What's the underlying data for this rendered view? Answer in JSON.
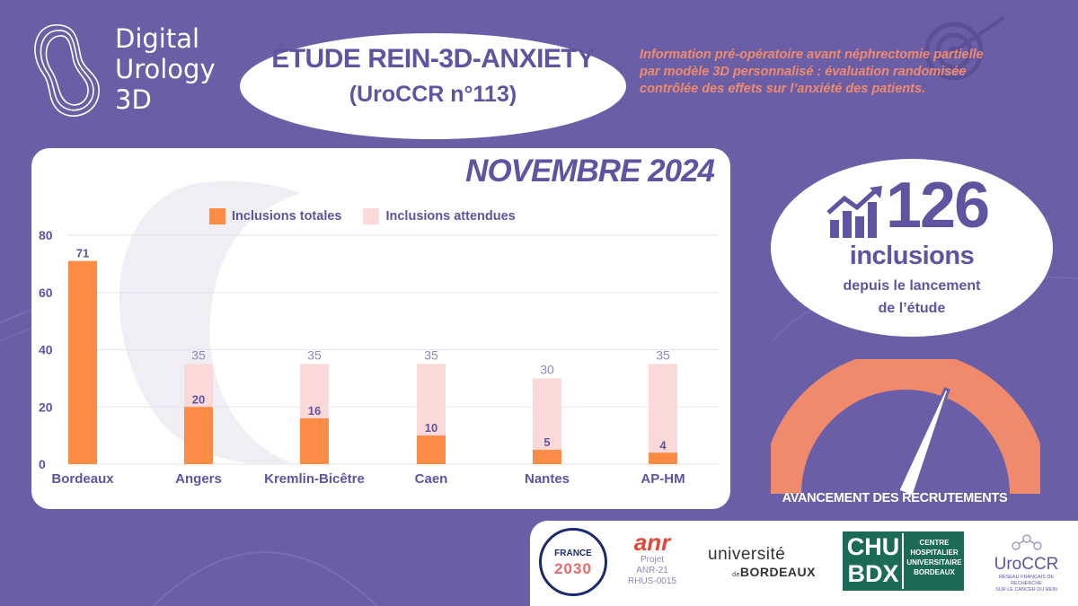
{
  "logo": {
    "line1": "Digital",
    "line2": "Urology",
    "line3": "3D"
  },
  "study": {
    "title": "ÉTUDE REIN-3D-ANXIETY",
    "subtitle": "(UroCCR n°113)"
  },
  "description": [
    " Information pré-opératoire avant néphrectomie partielle",
    "par modèle 3D personnalisé : évaluation randomisée",
    "contrôlée des effets sur l’anxiété des patients."
  ],
  "inclusions": {
    "count": "126",
    "label": "inclusions",
    "sub1": "depuis le lancement",
    "sub2": "de l’étude"
  },
  "gauge": {
    "label": "AVANCEMENT DES RECRUTEMENTS",
    "needle_fraction": 0.62
  },
  "colors": {
    "background": "#6a5fa7",
    "accent": "#5d55a0",
    "total": "#fa8c46",
    "expected": "#fcd9d9",
    "gauge": "#f08a6c"
  },
  "icons": [
    "growth-chart-icon",
    "target-icon",
    "speedometer-needle-icon"
  ],
  "chart_data": {
    "type": "bar",
    "title": "NOVEMBRE 2024",
    "categories": [
      "Bordeaux",
      "Angers",
      "Kremlin-Bicêtre",
      "Caen",
      "Nantes",
      "AP-HM"
    ],
    "series": [
      {
        "name": "Inclusions totales",
        "values": [
          71,
          20,
          16,
          10,
          5,
          4
        ]
      },
      {
        "name": "Inclusions attendues",
        "values": [
          null,
          35,
          35,
          35,
          30,
          35
        ]
      }
    ],
    "y_ticks": [
      "0",
      "20",
      "40",
      "60",
      "80"
    ],
    "ylim": [
      0,
      80
    ],
    "grid": true,
    "legend_position": "top"
  },
  "partners": {
    "france2030_line1": "FRANCE",
    "france2030_line2": "2030",
    "anr_name": "anr",
    "anr_line1": "Projet",
    "anr_line2": "ANR-21",
    "anr_line3": "RHUS-0015",
    "ubx_line1": "université",
    "ubx_de": "de",
    "ubx_line2": "BORDEAUX",
    "chu_line1": "CHU",
    "chu_line2": "BDX",
    "chu_r1": "CENTRE",
    "chu_r2": "HOSPITALIER",
    "chu_r3": "UNIVERSITAIRE",
    "chu_r4": "BORDEAUX",
    "uroccr_name": "UroCCR",
    "uroccr_tag1": "RÉSEAU FRANÇAIS DE RECHERCHE",
    "uroccr_tag2": "SUR LE CANCER DU REIN"
  }
}
